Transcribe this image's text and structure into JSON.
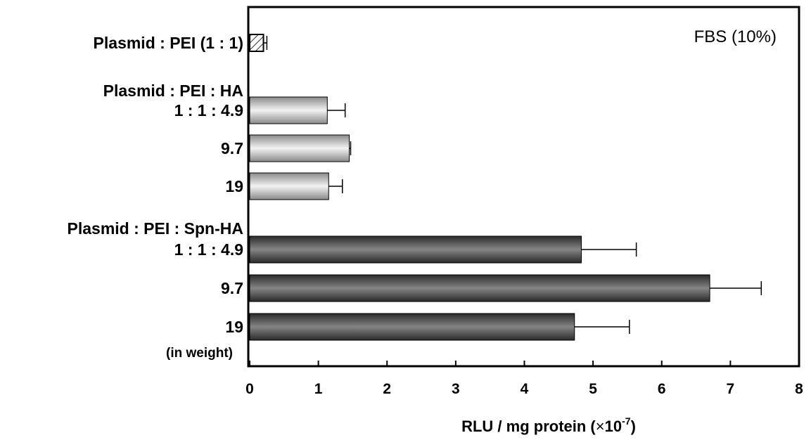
{
  "chart_data": {
    "type": "bar",
    "orientation": "horizontal",
    "annotation": "FBS (10%)",
    "xlabel": "RLU / mg protein (",
    "xlabel_mult": "×",
    "xlabel_base": "10",
    "xlabel_exp": "-7",
    "xlabel_close": ")",
    "xlim": [
      0,
      8
    ],
    "xticks": [
      "0",
      "1",
      "2",
      "3",
      "4",
      "5",
      "6",
      "7",
      "8"
    ],
    "grid": false,
    "legend": "none",
    "group_headers": [
      {
        "text": "Plasmid : PEI : HA",
        "before_bar": 1
      },
      {
        "text": "Plasmid : PEI : Spn-HA",
        "before_bar": 4
      }
    ],
    "footnote": "(in weight)",
    "bars": [
      {
        "label": "Plasmid : PEI (1 : 1)",
        "value": 0.2,
        "error": 0.05,
        "style": "hatched"
      },
      {
        "label": "1 : 1 : 4.9",
        "value": 1.13,
        "error": 0.26,
        "style": "light"
      },
      {
        "label": "9.7",
        "value": 1.45,
        "error": 0.02,
        "style": "light"
      },
      {
        "label": "19",
        "value": 1.15,
        "error": 0.2,
        "style": "light"
      },
      {
        "label": "1 : 1 : 4.9",
        "value": 4.83,
        "error": 0.8,
        "style": "dark"
      },
      {
        "label": "9.7",
        "value": 6.7,
        "error": 0.75,
        "style": "dark"
      },
      {
        "label": "19",
        "value": 4.73,
        "error": 0.8,
        "style": "dark"
      }
    ]
  }
}
